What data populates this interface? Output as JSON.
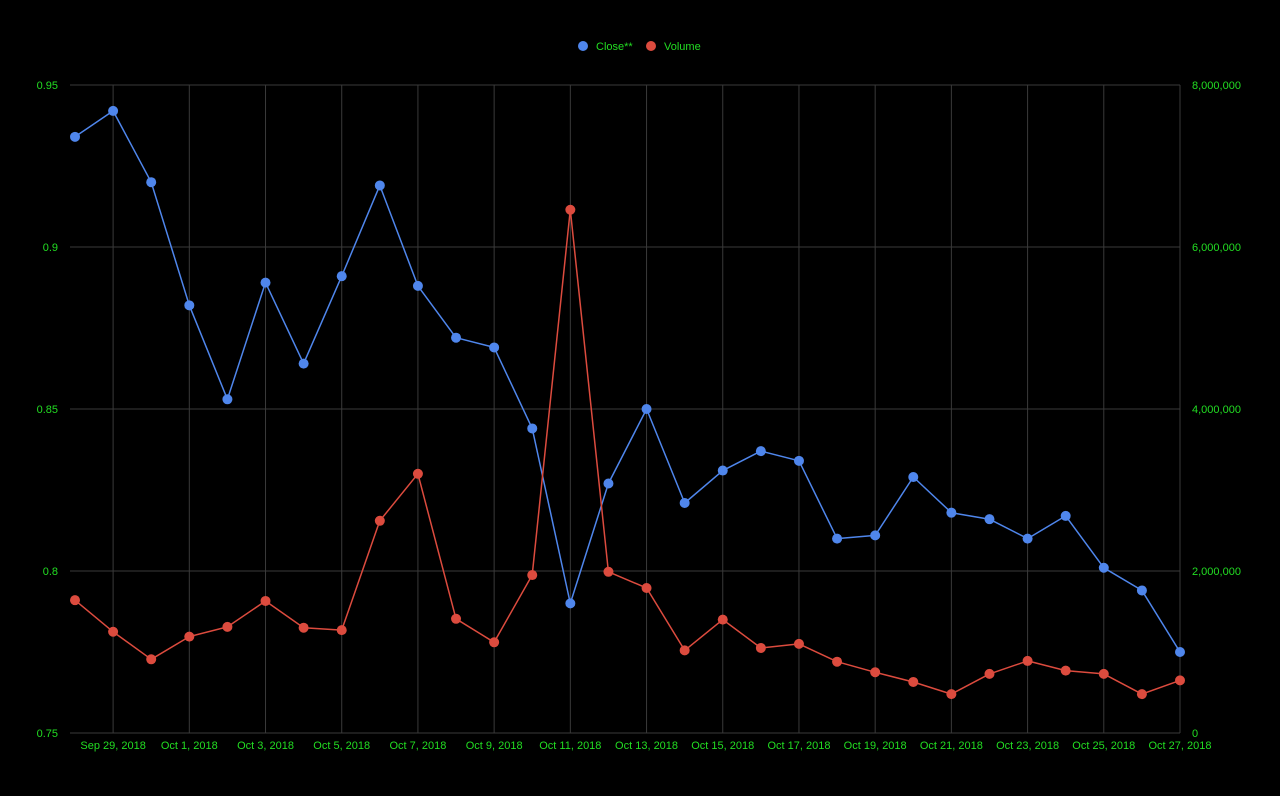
{
  "colors": {
    "background": "#000000",
    "grid": "#3a3a3a",
    "tick_text": "#22dd22",
    "close_series": "#4f86ec",
    "volume_series": "#dc4b3e"
  },
  "chart_data": {
    "type": "line",
    "title": "",
    "legend_position": "top-center",
    "grid": true,
    "x": [
      "Sep 28, 2018",
      "Sep 29, 2018",
      "Sep 30, 2018",
      "Oct 1, 2018",
      "Oct 2, 2018",
      "Oct 3, 2018",
      "Oct 4, 2018",
      "Oct 5, 2018",
      "Oct 6, 2018",
      "Oct 7, 2018",
      "Oct 8, 2018",
      "Oct 9, 2018",
      "Oct 10, 2018",
      "Oct 11, 2018",
      "Oct 12, 2018",
      "Oct 13, 2018",
      "Oct 14, 2018",
      "Oct 15, 2018",
      "Oct 16, 2018",
      "Oct 17, 2018",
      "Oct 18, 2018",
      "Oct 19, 2018",
      "Oct 20, 2018",
      "Oct 21, 2018",
      "Oct 22, 2018",
      "Oct 23, 2018",
      "Oct 24, 2018",
      "Oct 25, 2018",
      "Oct 26, 2018",
      "Oct 27, 2018"
    ],
    "x_tick_labels": [
      "Sep 29, 2018",
      "Oct 1, 2018",
      "Oct 3, 2018",
      "Oct 5, 2018",
      "Oct 7, 2018",
      "Oct 9, 2018",
      "Oct 11, 2018",
      "Oct 13, 2018",
      "Oct 15, 2018",
      "Oct 17, 2018",
      "Oct 19, 2018",
      "Oct 21, 2018",
      "Oct 23, 2018",
      "Oct 25, 2018",
      "Oct 27, 2018"
    ],
    "y_left": {
      "min": 0.75,
      "max": 0.95,
      "ticks": [
        0.75,
        0.8,
        0.85,
        0.9,
        0.95
      ],
      "tick_labels": [
        "0.75",
        "0.8",
        "0.85",
        "0.9",
        "0.95"
      ]
    },
    "y_right": {
      "min": 0,
      "max": 8000000,
      "ticks": [
        0,
        2000000,
        4000000,
        6000000,
        8000000
      ],
      "tick_labels": [
        "0",
        "2,000,000",
        "4,000,000",
        "6,000,000",
        "8,000,000"
      ]
    },
    "series": [
      {
        "name": "Close**",
        "axis": "left",
        "color": "#4f86ec",
        "values": [
          0.934,
          0.942,
          0.92,
          0.882,
          0.853,
          0.889,
          0.864,
          0.891,
          0.919,
          0.888,
          0.872,
          0.869,
          0.844,
          0.79,
          0.827,
          0.85,
          0.821,
          0.831,
          0.837,
          0.834,
          0.81,
          0.811,
          0.829,
          0.818,
          0.816,
          0.81,
          0.817,
          0.801,
          0.794,
          0.775
        ]
      },
      {
        "name": "Volume",
        "axis": "right",
        "color": "#dc4b3e",
        "values": [
          1640000,
          1250000,
          910000,
          1190000,
          1310000,
          1630000,
          1300000,
          1270000,
          2620000,
          3200000,
          1410000,
          1120000,
          1950000,
          6460000,
          1990000,
          1790000,
          1020000,
          1400000,
          1050000,
          1100000,
          880000,
          750000,
          630000,
          480000,
          730000,
          890000,
          770000,
          730000,
          480000,
          650000
        ]
      }
    ]
  }
}
